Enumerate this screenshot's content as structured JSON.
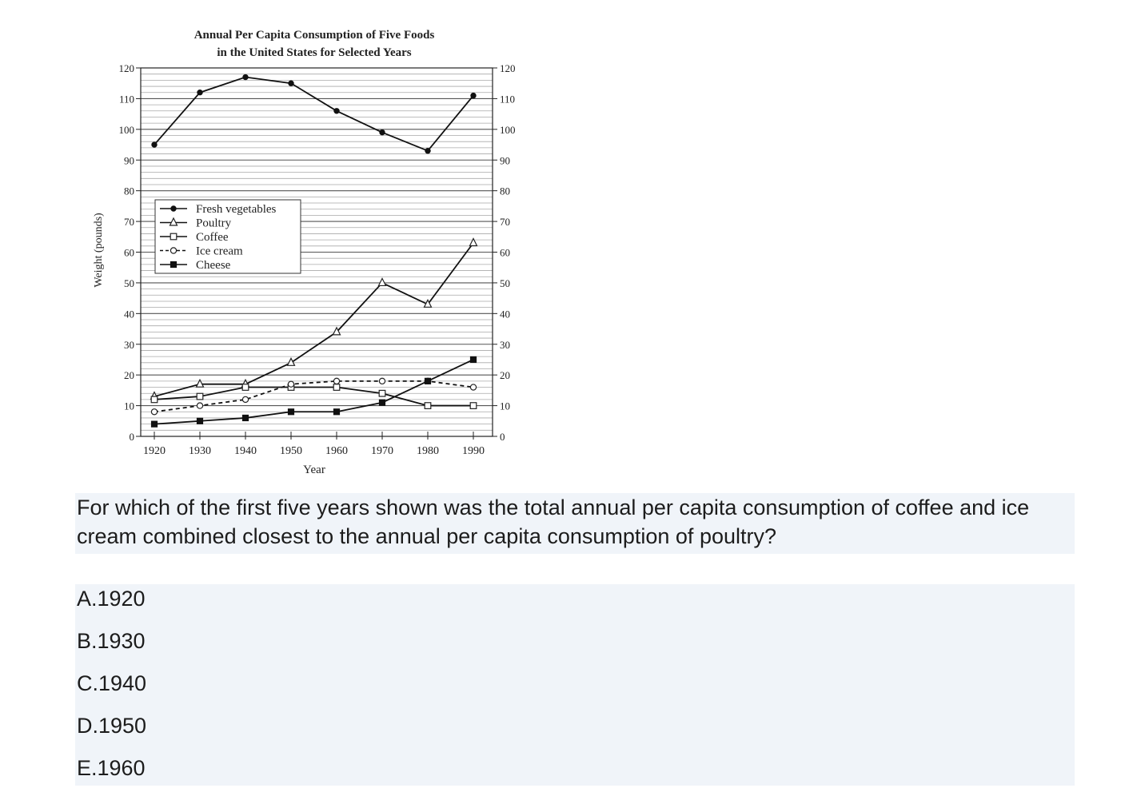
{
  "chart_data": {
    "type": "line",
    "title_line1": "Annual Per Capita Consumption of Five Foods",
    "title_line2": "in the United States for Selected Years",
    "xlabel": "Year",
    "ylabel": "Weight (pounds)",
    "x": [
      1920,
      1930,
      1940,
      1950,
      1960,
      1970,
      1980,
      1990
    ],
    "ylim": [
      0,
      120
    ],
    "yticks": [
      0,
      10,
      20,
      30,
      40,
      50,
      60,
      70,
      80,
      90,
      100,
      110,
      120
    ],
    "minor_grid_step": 2,
    "grid": true,
    "legend_position": "upper-left",
    "series": [
      {
        "name": "Fresh vegetables",
        "marker": "filled-circle",
        "dash": "solid",
        "values": [
          95,
          112,
          117,
          115,
          106,
          99,
          93,
          111
        ]
      },
      {
        "name": "Poultry",
        "marker": "open-triangle",
        "dash": "solid",
        "values": [
          13,
          17,
          17,
          24,
          34,
          50,
          43,
          63
        ]
      },
      {
        "name": "Coffee",
        "marker": "open-square",
        "dash": "solid",
        "values": [
          12,
          13,
          16,
          16,
          16,
          14,
          10,
          10
        ]
      },
      {
        "name": "Ice cream",
        "marker": "open-circle",
        "dash": "dashed",
        "values": [
          8,
          10,
          12,
          17,
          18,
          18,
          18,
          16
        ]
      },
      {
        "name": "Cheese",
        "marker": "filled-square",
        "dash": "solid",
        "values": [
          4,
          5,
          6,
          8,
          8,
          11,
          18,
          25
        ]
      }
    ]
  },
  "question": "For which of the first five years shown was the total annual per capita consumption of coffee and ice cream combined closest to the annual per capita consumption of poultry?",
  "options": [
    "A.1920",
    "B.1930",
    "C.1940",
    "D.1950",
    "E.1960"
  ]
}
